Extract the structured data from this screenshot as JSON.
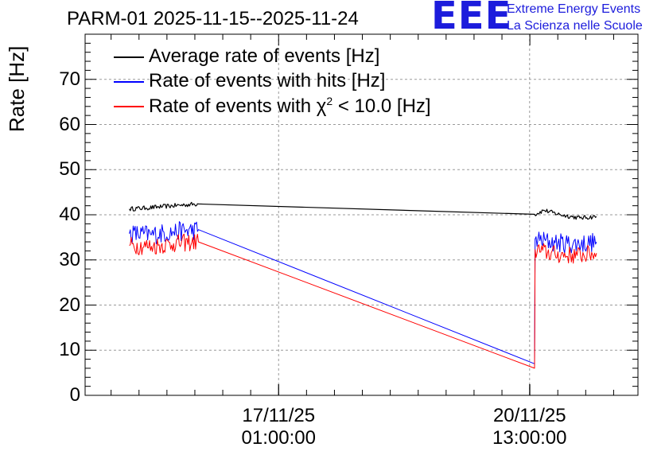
{
  "chart_data": {
    "type": "line",
    "title": "PARM-01 2025-11-15--2025-11-24",
    "ylabel": "Rate [Hz]",
    "xlabel": "",
    "ylim": [
      0,
      80
    ],
    "xlim": [
      0,
      1
    ],
    "grid": true,
    "y_ticks": [
      "0",
      "10",
      "20",
      "30",
      "40",
      "50",
      "60",
      "70"
    ],
    "x_ticks": [
      {
        "date": "17/11/25",
        "time": "01:00:00"
      },
      {
        "date": "20/11/25",
        "time": "13:00:00"
      }
    ],
    "x_tick_positions": [
      0.35,
      0.804
    ],
    "legend_position": "top-left",
    "series": [
      {
        "name": "Average rate of events [Hz]",
        "legend_prefix": "Average rate of events [Hz]",
        "legend_sup": "",
        "legend_suffix": "",
        "color": "#000000",
        "noise": 0.5,
        "points": [
          [
            0.08,
            41.3
          ],
          [
            0.11,
            41.5
          ],
          [
            0.14,
            41.8
          ],
          [
            0.18,
            42.2
          ],
          [
            0.205,
            42.4
          ],
          [
            0.813,
            40.1
          ],
          [
            0.83,
            41.0
          ],
          [
            0.86,
            40.0
          ],
          [
            0.895,
            39.3
          ],
          [
            0.925,
            39.6
          ]
        ]
      },
      {
        "name": "Rate of events with hits [Hz]",
        "legend_prefix": "Rate of events with hits [Hz]",
        "legend_sup": "",
        "legend_suffix": "",
        "color": "#0000ff",
        "noise": 2.2,
        "points": [
          [
            0.08,
            35.8
          ],
          [
            0.12,
            35.6
          ],
          [
            0.16,
            36.2
          ],
          [
            0.205,
            36.7
          ],
          [
            0.813,
            7.0
          ],
          [
            0.814,
            34.6
          ],
          [
            0.85,
            33.8
          ],
          [
            0.89,
            33.5
          ],
          [
            0.925,
            34.0
          ]
        ]
      },
      {
        "name": "Rate of events with χ² < 10.0 [Hz]",
        "legend_prefix": "Rate of events with χ",
        "legend_sup": "2",
        "legend_suffix": " < 10.0 [Hz]",
        "color": "#ff0000",
        "noise": 2.0,
        "points": [
          [
            0.08,
            33.2
          ],
          [
            0.12,
            33.0
          ],
          [
            0.16,
            33.6
          ],
          [
            0.205,
            34.0
          ],
          [
            0.813,
            6.0
          ],
          [
            0.814,
            32.3
          ],
          [
            0.85,
            31.2
          ],
          [
            0.89,
            31.0
          ],
          [
            0.925,
            31.5
          ]
        ]
      }
    ]
  },
  "logo": {
    "text": "EEE",
    "line1": "Extreme Energy Events",
    "line2": "La Scienza nelle Scuole"
  }
}
